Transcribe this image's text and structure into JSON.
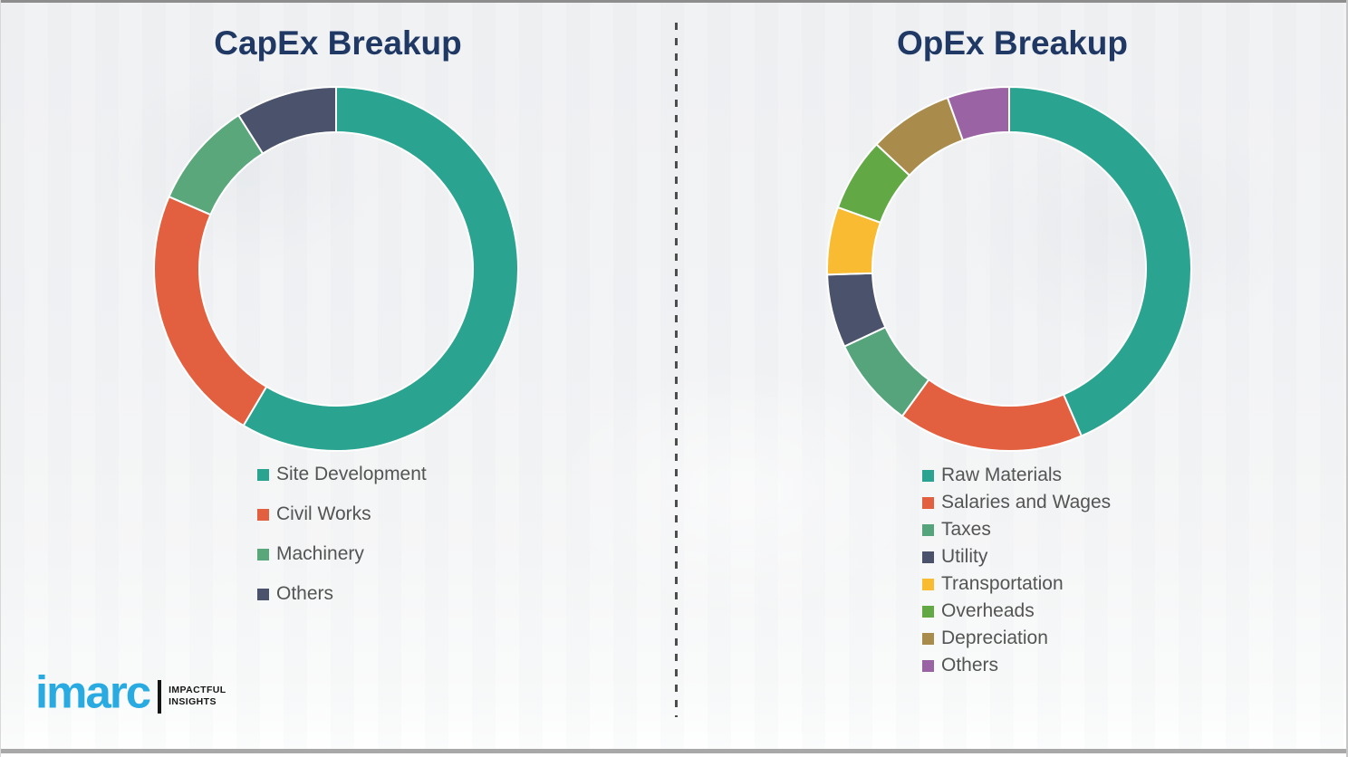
{
  "page": {
    "background_color": "#F2F3F5",
    "divider": {
      "orientation": "vertical",
      "style": "dashed",
      "color": "#4D4D4D"
    }
  },
  "logo": {
    "brand": "imarc",
    "brand_color": "#29ABE2",
    "tagline_line1": "IMPACTFUL",
    "tagline_line2": "INSIGHTS"
  },
  "chart_data": [
    {
      "type": "pie",
      "subtype": "donut",
      "title": "CapEx Breakup",
      "title_color": "#1F3864",
      "labels": [
        "Site Development",
        "Civil Works",
        "Machinery",
        "Others"
      ],
      "values": [
        58.5,
        23,
        9.5,
        9
      ],
      "colors": [
        "#2AA491",
        "#E2603F",
        "#5BA77C",
        "#4A526C"
      ],
      "units": "percent (estimated from arc angles; no data labels shown)",
      "start_angle_deg": 0,
      "direction": "clockwise",
      "inner_radius_ratio": 0.75,
      "legend_position": "below-left",
      "separator_color": "#FFFFFF"
    },
    {
      "type": "pie",
      "subtype": "donut",
      "title": "OpEx Breakup",
      "title_color": "#1F3864",
      "labels": [
        "Raw Materials",
        "Salaries and Wages",
        "Taxes",
        "Utility",
        "Transportation",
        "Overheads",
        "Depreciation",
        "Others"
      ],
      "values": [
        43.5,
        16.5,
        8,
        6.5,
        6,
        6.5,
        7.5,
        5.5
      ],
      "colors": [
        "#2AA491",
        "#E2603F",
        "#55A47B",
        "#4A526C",
        "#F8BB31",
        "#62A845",
        "#A98B4B",
        "#9A63A3"
      ],
      "units": "percent (estimated from arc angles; no data labels shown)",
      "start_angle_deg": 0,
      "direction": "clockwise",
      "inner_radius_ratio": 0.75,
      "legend_position": "below-left",
      "separator_color": "#FFFFFF"
    }
  ]
}
